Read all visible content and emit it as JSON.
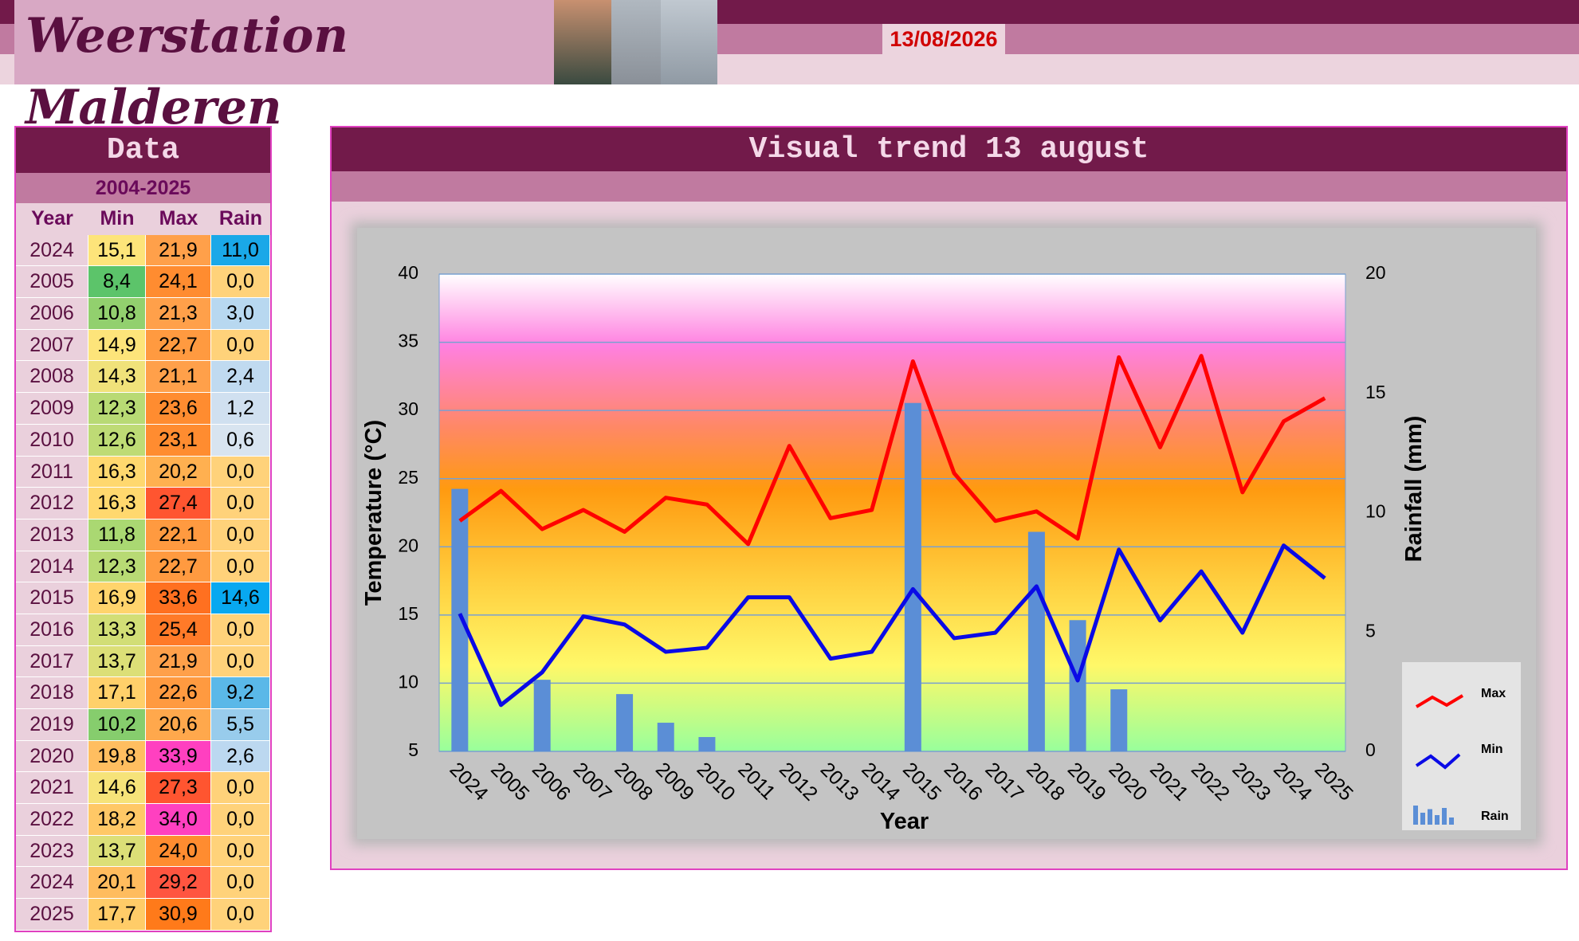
{
  "header": {
    "title": "Weerstation Malderen",
    "date": "13/08/2026"
  },
  "table": {
    "title": "Data",
    "subtitle": "2004-2025",
    "columns": [
      "Year",
      "Min",
      "Max",
      "Rain"
    ],
    "rows": [
      [
        "2024",
        "15,1",
        "21,9",
        "11,0"
      ],
      [
        "2005",
        "8,4",
        "24,1",
        "0,0"
      ],
      [
        "2006",
        "10,8",
        "21,3",
        "3,0"
      ],
      [
        "2007",
        "14,9",
        "22,7",
        "0,0"
      ],
      [
        "2008",
        "14,3",
        "21,1",
        "2,4"
      ],
      [
        "2009",
        "12,3",
        "23,6",
        "1,2"
      ],
      [
        "2010",
        "12,6",
        "23,1",
        "0,6"
      ],
      [
        "2011",
        "16,3",
        "20,2",
        "0,0"
      ],
      [
        "2012",
        "16,3",
        "27,4",
        "0,0"
      ],
      [
        "2013",
        "11,8",
        "22,1",
        "0,0"
      ],
      [
        "2014",
        "12,3",
        "22,7",
        "0,0"
      ],
      [
        "2015",
        "16,9",
        "33,6",
        "14,6"
      ],
      [
        "2016",
        "13,3",
        "25,4",
        "0,0"
      ],
      [
        "2017",
        "13,7",
        "21,9",
        "0,0"
      ],
      [
        "2018",
        "17,1",
        "22,6",
        "9,2"
      ],
      [
        "2019",
        "10,2",
        "20,6",
        "5,5"
      ],
      [
        "2020",
        "19,8",
        "33,9",
        "2,6"
      ],
      [
        "2021",
        "14,6",
        "27,3",
        "0,0"
      ],
      [
        "2022",
        "18,2",
        "34,0",
        "0,0"
      ],
      [
        "2023",
        "13,7",
        "24,0",
        "0,0"
      ],
      [
        "2024",
        "20,1",
        "29,2",
        "0,0"
      ],
      [
        "2025",
        "17,7",
        "30,9",
        "0,0"
      ]
    ],
    "cell_colors": [
      [
        "#fde47a",
        "#ffa04a",
        "#1aa8e8"
      ],
      [
        "#5cc46a",
        "#ff8c30",
        "#ffd27a"
      ],
      [
        "#92d06e",
        "#ffa04a",
        "#b8d8f0"
      ],
      [
        "#fde47a",
        "#ff9a40",
        "#ffd27a"
      ],
      [
        "#f0e27a",
        "#ffa04a",
        "#c0daf0"
      ],
      [
        "#b8da74",
        "#ff8c30",
        "#d0e0f0"
      ],
      [
        "#bedb75",
        "#ff8c30",
        "#d8e4f0"
      ],
      [
        "#ffd86e",
        "#ffb050",
        "#ffd27a"
      ],
      [
        "#ffd86e",
        "#ff5530",
        "#ffd27a"
      ],
      [
        "#aad872",
        "#ff9a40",
        "#ffd27a"
      ],
      [
        "#b8da74",
        "#ff9a40",
        "#ffd27a"
      ],
      [
        "#ffd46c",
        "#ff7020",
        "#08a8f0"
      ],
      [
        "#d2de76",
        "#ff7a28",
        "#ffd27a"
      ],
      [
        "#dcdf77",
        "#ffa04a",
        "#ffd27a"
      ],
      [
        "#ffd06a",
        "#ff9a40",
        "#5ab8e8"
      ],
      [
        "#86cd6d",
        "#ffa84c",
        "#98ccec"
      ],
      [
        "#ffbe60",
        "#ff40c0",
        "#bcd8f0"
      ],
      [
        "#f6e379",
        "#ff5530",
        "#ffd27a"
      ],
      [
        "#ffc866",
        "#ff40c0",
        "#ffd27a"
      ],
      [
        "#dcdf77",
        "#ff8c30",
        "#ffd27a"
      ],
      [
        "#ffbc5e",
        "#ff5540",
        "#ffd27a"
      ],
      [
        "#ffcc68",
        "#ff7a1a",
        "#ffd27a"
      ]
    ]
  },
  "chart_data": {
    "type": "line",
    "title": "Visual trend 13 august",
    "x_label": "Year",
    "y_label": "Temperature (°C)",
    "y2_label": "Rainfall (mm)",
    "categories": [
      "2024",
      "2005",
      "2006",
      "2007",
      "2008",
      "2009",
      "2010",
      "2011",
      "2012",
      "2013",
      "2014",
      "2015",
      "2016",
      "2017",
      "2018",
      "2019",
      "2020",
      "2021",
      "2022",
      "2023",
      "2024",
      "2025"
    ],
    "series": [
      {
        "name": "Max",
        "color": "#ff0000",
        "values": [
          21.9,
          24.1,
          21.3,
          22.7,
          21.1,
          23.6,
          23.1,
          20.2,
          27.4,
          22.1,
          22.7,
          33.6,
          25.4,
          21.9,
          22.6,
          20.6,
          33.9,
          27.3,
          34.0,
          24.0,
          29.2,
          30.9
        ]
      },
      {
        "name": "Min",
        "color": "#0a0ae6",
        "values": [
          15.1,
          8.4,
          10.8,
          14.9,
          14.3,
          12.3,
          12.6,
          16.3,
          16.3,
          11.8,
          12.3,
          16.9,
          13.3,
          13.7,
          17.1,
          10.2,
          19.8,
          14.6,
          18.2,
          13.7,
          20.1,
          17.7
        ]
      },
      {
        "name": "Rain",
        "color": "#5b8ed6",
        "type": "bar",
        "axis": "y2",
        "values": [
          11.0,
          0.0,
          3.0,
          0.0,
          2.4,
          1.2,
          0.6,
          0.0,
          0.0,
          0.0,
          0.0,
          14.6,
          0.0,
          0.0,
          9.2,
          5.5,
          2.6,
          0.0,
          0.0,
          0.0,
          0.0,
          0.0
        ]
      }
    ],
    "ylim": [
      5,
      40
    ],
    "yticks": [
      5,
      10,
      15,
      20,
      25,
      30,
      35,
      40
    ],
    "y2lim": [
      0,
      20
    ],
    "y2ticks": [
      0,
      5,
      10,
      15,
      20
    ],
    "grid": true
  }
}
